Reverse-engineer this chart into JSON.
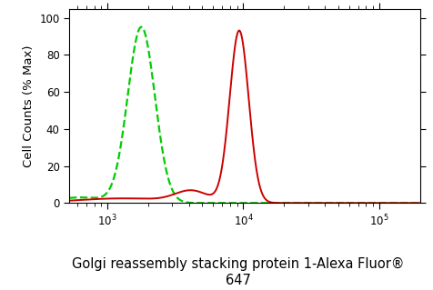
{
  "title": "Golgi reassembly stacking protein 1-Alexa Fluor®\n647",
  "ylabel": "Cell Counts (% Max)",
  "xlim_log": [
    2.72,
    5.3
  ],
  "ylim": [
    0,
    105
  ],
  "yticks": [
    0,
    20,
    40,
    60,
    80,
    100
  ],
  "background_color": "#ffffff",
  "green_curve": {
    "color": "#00cc00",
    "linestyle": "dashed",
    "linewidth": 1.6,
    "peak_log": 3.25,
    "peak_height": 95,
    "sigma_log": 0.1
  },
  "red_curve": {
    "color": "#cc0000",
    "linestyle": "solid",
    "linewidth": 1.4,
    "peak_log": 3.97,
    "peak_height": 93,
    "sigma_log": 0.07
  },
  "title_fontsize": 10.5,
  "axis_label_fontsize": 9.5,
  "tick_fontsize": 8.5
}
